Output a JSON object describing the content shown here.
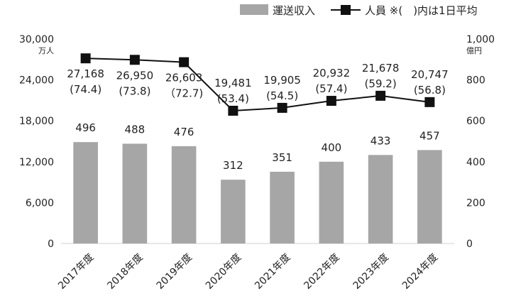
{
  "chart_data": {
    "type": "bar",
    "categories": [
      "2017年度",
      "2018年度",
      "2019年度",
      "2020年度",
      "2021年度",
      "2022年度",
      "2023年度",
      "2024年度"
    ],
    "series": [
      {
        "name": "運送収入",
        "kind": "bar",
        "axis": "right",
        "color": "#a6a6a6",
        "values": [
          496,
          488,
          476,
          312,
          351,
          400,
          433,
          457
        ],
        "labels": [
          "496",
          "488",
          "476",
          "312",
          "351",
          "400",
          "433",
          "457"
        ]
      },
      {
        "name": "人員 ※(　)内は1日平均",
        "kind": "line",
        "axis": "left",
        "color": "#111111",
        "values": [
          27168,
          26950,
          26603,
          19481,
          19905,
          20932,
          21678,
          20747
        ],
        "labels": [
          "27,168",
          "26,950",
          "26,603",
          "19,481",
          "19,905",
          "20,932",
          "21,678",
          "20,747"
        ],
        "sublabels": [
          "(74.4)",
          "(73.8)",
          "（72.7)",
          "(53.4)",
          "(54.5)",
          "(57.4)",
          "(59.2)",
          "(56.8)"
        ]
      }
    ],
    "y_left": {
      "unit": "万人",
      "ylim": [
        0,
        30000
      ],
      "ticks": [
        "0",
        "6,000",
        "12,000",
        "18,000",
        "24,000",
        "30,000"
      ]
    },
    "y_right": {
      "unit": "億円",
      "ylim": [
        0,
        1000
      ],
      "ticks": [
        "0",
        "200",
        "400",
        "600",
        "800",
        "1,000"
      ]
    },
    "legend_position": "top-right",
    "grid": false
  }
}
